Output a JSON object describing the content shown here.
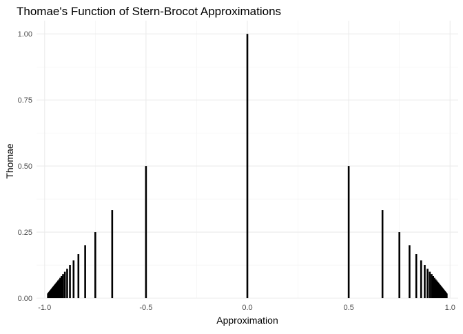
{
  "chart_data": {
    "type": "bar",
    "title": "Thomae's Function of Stern-Brocot Approximations",
    "xlabel": "Approximation",
    "ylabel": "Thomae",
    "xlim": [
      -1.04,
      1.04
    ],
    "ylim": [
      0,
      1.05
    ],
    "x_ticks": [
      -1.0,
      -0.5,
      0.0,
      0.5,
      1.0
    ],
    "x_tick_labels": [
      "-1.0",
      "-0.5",
      "0.0",
      "0.5",
      "1.0"
    ],
    "y_ticks": [
      0.0,
      0.25,
      0.5,
      0.75,
      1.0
    ],
    "y_tick_labels": [
      "0.00",
      "0.25",
      "0.50",
      "0.75",
      "1.00"
    ],
    "grid": true,
    "bar_color": "#000000",
    "points_rule": "x = ±(n-1)/n, Thomae = 1/n for n = 1..60",
    "n_max": 60
  }
}
